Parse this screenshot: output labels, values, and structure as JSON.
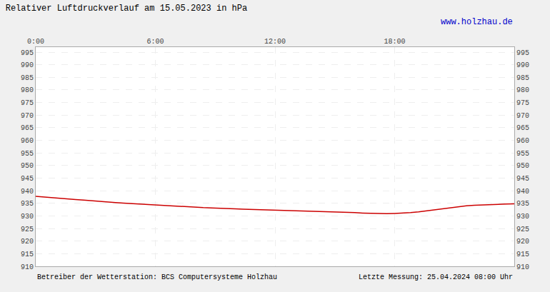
{
  "chart_data": {
    "type": "line",
    "title": "Relativer Luftdruckverlauf am 15.05.2023 in hPa",
    "annotations": [
      "www.holzhau.de",
      "Betreiber der Wetterstation: BCS Computersysteme Holzhau",
      "Letzte Messung: 25.04.2024 08:00 Uhr"
    ],
    "x": [
      0.0,
      0.4,
      0.8,
      1.2,
      1.6,
      2.0,
      2.4,
      2.8,
      3.2,
      3.6,
      4.0,
      4.4,
      4.8,
      5.2,
      5.6,
      6.0,
      6.4,
      6.8,
      7.2,
      7.6,
      8.0,
      8.4,
      8.8,
      9.2,
      9.6,
      10.0,
      10.4,
      10.8,
      11.2,
      11.6,
      12.0,
      12.4,
      12.8,
      13.2,
      13.6,
      14.0,
      14.4,
      14.8,
      15.2,
      15.6,
      16.0,
      16.4,
      16.8,
      17.2,
      17.6,
      18.0,
      18.4,
      18.8,
      19.2,
      19.6,
      20.0,
      20.4,
      20.8,
      21.2,
      21.6,
      22.0,
      22.4,
      22.8,
      23.2,
      23.6,
      24.0
    ],
    "values": [
      937.8,
      937.5,
      937.2,
      937.0,
      936.8,
      936.5,
      936.3,
      936.0,
      935.8,
      935.5,
      935.3,
      935.1,
      934.9,
      934.7,
      934.5,
      934.3,
      934.1,
      933.9,
      933.8,
      933.7,
      933.5,
      933.3,
      933.2,
      933.0,
      932.9,
      932.8,
      932.7,
      932.6,
      932.5,
      932.5,
      932.4,
      932.3,
      932.3,
      932.2,
      932.1,
      932.0,
      931.9,
      931.8,
      931.6,
      931.5,
      931.3,
      931.1,
      931.0,
      930.9,
      930.9,
      931.0,
      931.1,
      931.3,
      931.6,
      932.0,
      932.5,
      933.0,
      933.4,
      933.7,
      934.0,
      934.2,
      934.4,
      934.5,
      934.6,
      934.7,
      934.8
    ],
    "color": "#cc0000",
    "xlim": [
      0,
      24
    ],
    "xticks": [
      {
        "value": 0,
        "label": "0:00"
      },
      {
        "value": 6,
        "label": "6:00"
      },
      {
        "value": 12,
        "label": "12:00"
      },
      {
        "value": 18,
        "label": "18:00"
      }
    ],
    "ylim": [
      910,
      997
    ],
    "yticks": [
      910,
      915,
      920,
      925,
      930,
      935,
      940,
      945,
      950,
      955,
      960,
      965,
      970,
      975,
      980,
      985,
      990,
      995
    ],
    "y2lim": [
      910,
      997
    ],
    "y2ticks": [
      910,
      915,
      920,
      925,
      930,
      935,
      940,
      945,
      950,
      955,
      960,
      965,
      970,
      975,
      980,
      985,
      990,
      995
    ],
    "grid": true
  }
}
